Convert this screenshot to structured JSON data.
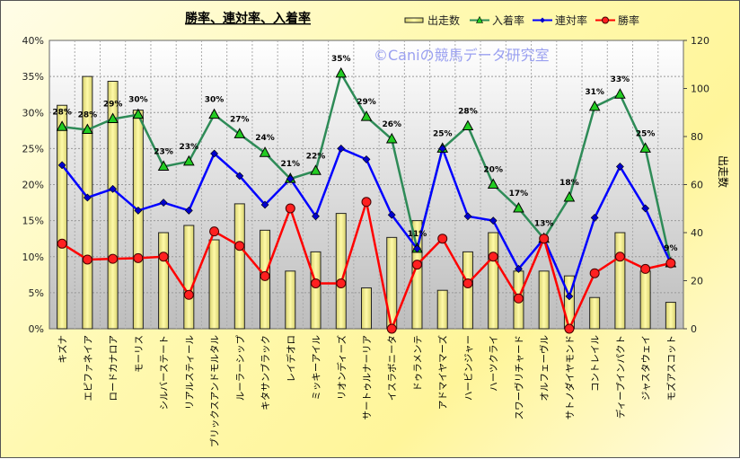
{
  "chart_data": {
    "type": "bar+line",
    "title": "勝率、連対率、入着率",
    "watermark": "©Caniの競馬データ研究室",
    "ylabel_right": "出走数",
    "ylim_left": [
      0,
      40
    ],
    "ylim_right": [
      0,
      120
    ],
    "left_ticks": [
      "0%",
      "5%",
      "10%",
      "15%",
      "20%",
      "25%",
      "30%",
      "35%",
      "40%"
    ],
    "right_ticks": [
      "0",
      "20",
      "40",
      "60",
      "80",
      "100",
      "120"
    ],
    "legend_position": "top-right",
    "grid": true,
    "categories": [
      "キズナ",
      "エピファネイア",
      "ロードカナロア",
      "モーリス",
      "シルバーステート",
      "リアルスティール",
      "ブリックスアンドモルタル",
      "ルーラーシップ",
      "キタサンブラック",
      "レイデオロ",
      "ミッキーアイル",
      "リオンディーズ",
      "サートゥルナーリア",
      "イスラボニータ",
      "ドゥラメンテ",
      "アドマイヤマーズ",
      "ハービンジャー",
      "ハーツクライ",
      "スワーヴリチャード",
      "オルフェーヴル",
      "サトノダイヤモンド",
      "コントレイル",
      "ディープインパクト",
      "ジャスタウェイ",
      "モズアスコット"
    ],
    "series": [
      {
        "name": "出走数",
        "type": "bar",
        "axis": "right",
        "color": "#f5f08a",
        "values": [
          93,
          105,
          103,
          91,
          40,
          43,
          37,
          52,
          41,
          24,
          32,
          48,
          17,
          38,
          45,
          16,
          32,
          40,
          24,
          24,
          22,
          13,
          40,
          24,
          11
        ]
      },
      {
        "name": "入着率",
        "type": "line",
        "axis": "left",
        "color": "#2e8b57",
        "marker": "triangle",
        "marker_color": "#22cc22",
        "values": [
          28.0,
          27.6,
          29.1,
          29.7,
          22.5,
          23.2,
          29.7,
          27.0,
          24.4,
          20.8,
          21.9,
          35.4,
          29.4,
          26.3,
          11.1,
          25.0,
          28.1,
          20.0,
          16.7,
          12.5,
          18.2,
          30.8,
          32.5,
          25.0,
          9.1
        ],
        "data_labels": [
          "28%",
          "28%",
          "29%",
          "30%",
          "23%",
          "23%",
          "30%",
          "27%",
          "24%",
          "21%",
          "22%",
          "35%",
          "29%",
          "26%",
          "11%",
          "25%",
          "28%",
          "20%",
          "17%",
          "13%",
          "18%",
          "31%",
          "33%",
          "25%",
          "9%"
        ]
      },
      {
        "name": "連対率",
        "type": "line",
        "axis": "left",
        "color": "#0000ff",
        "marker": "diamond",
        "marker_color": "#0000cc",
        "values": [
          22.7,
          18.2,
          19.4,
          16.4,
          17.5,
          16.4,
          24.3,
          21.2,
          17.2,
          20.8,
          15.6,
          25.0,
          23.5,
          15.8,
          11.1,
          25.0,
          15.6,
          15.0,
          8.3,
          12.5,
          4.5,
          15.4,
          22.5,
          16.7,
          9.1
        ]
      },
      {
        "name": "勝率",
        "type": "line",
        "axis": "left",
        "color": "#ff0000",
        "marker": "circle",
        "marker_color": "#ff2020",
        "values": [
          11.8,
          9.6,
          9.7,
          9.8,
          10.0,
          4.7,
          13.5,
          11.5,
          7.3,
          16.7,
          6.3,
          6.3,
          17.6,
          0,
          8.9,
          12.5,
          6.3,
          10.0,
          4.2,
          12.5,
          0,
          7.7,
          10.0,
          8.3,
          9.1
        ]
      }
    ]
  }
}
